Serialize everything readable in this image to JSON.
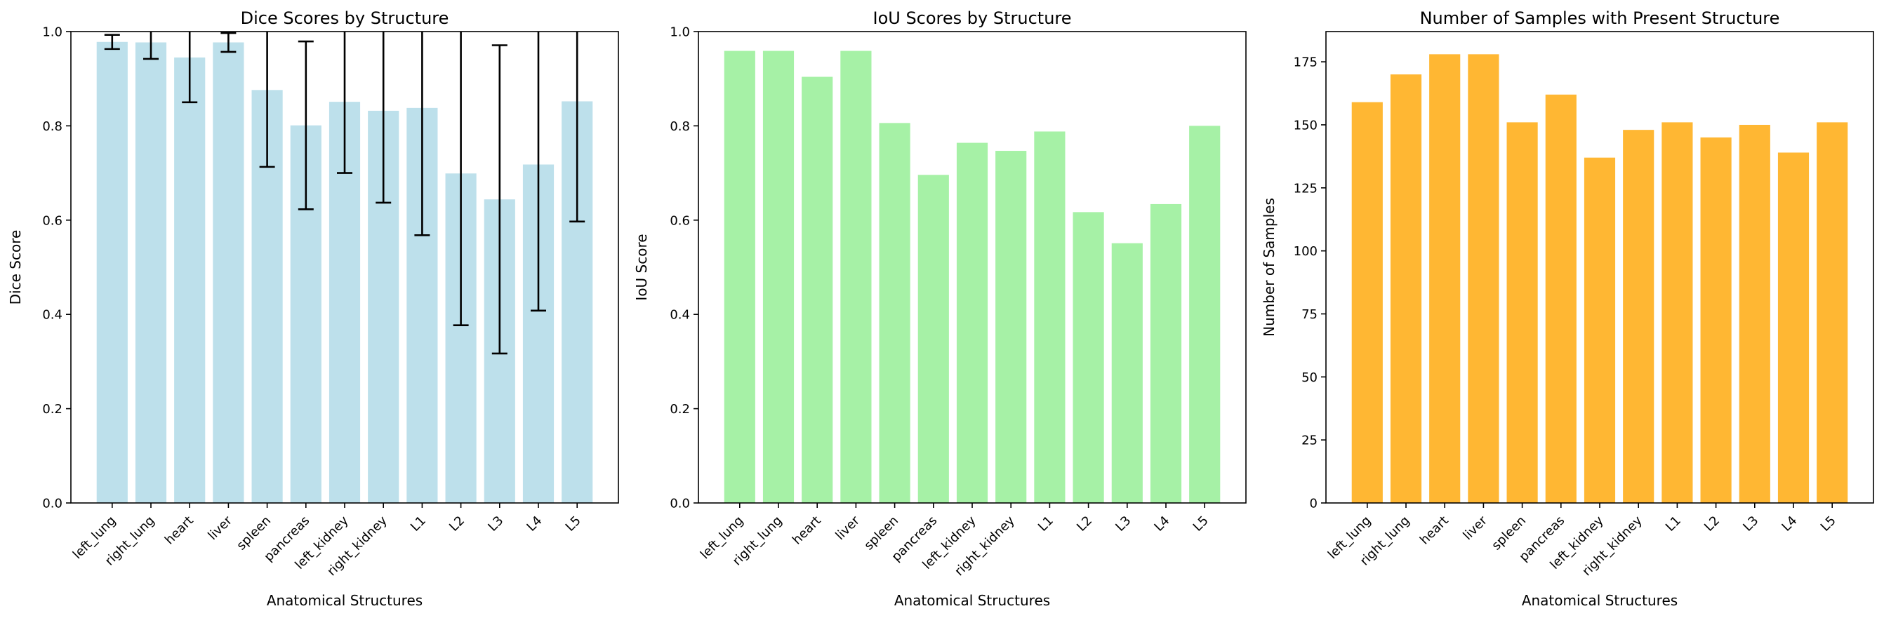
{
  "chart_data": [
    {
      "type": "bar",
      "title": "Dice Scores by Structure",
      "xlabel": "Anatomical Structures",
      "ylabel": "Dice Score",
      "ylim": [
        0,
        1.0
      ],
      "yticks": [
        0.0,
        0.2,
        0.4,
        0.6,
        0.8,
        1.0
      ],
      "ytick_labels": [
        "0.0",
        "0.2",
        "0.4",
        "0.6",
        "0.8",
        "1.0"
      ],
      "color": "#add8e6",
      "categories": [
        "left_lung",
        "right_lung",
        "heart",
        "liver",
        "spleen",
        "pancreas",
        "left_kidney",
        "right_kidney",
        "L1",
        "L2",
        "L3",
        "L4",
        "L5"
      ],
      "values": [
        0.978,
        0.977,
        0.945,
        0.977,
        0.876,
        0.801,
        0.851,
        0.832,
        0.838,
        0.699,
        0.644,
        0.718,
        0.852
      ],
      "error": [
        0.015,
        0.035,
        0.095,
        0.02,
        0.163,
        0.178,
        0.151,
        0.195,
        0.27,
        0.322,
        0.327,
        0.31,
        0.255
      ],
      "grid": false,
      "legend": "none"
    },
    {
      "type": "bar",
      "title": "IoU Scores by Structure",
      "xlabel": "Anatomical Structures",
      "ylabel": "IoU Score",
      "ylim": [
        0,
        1.0
      ],
      "yticks": [
        0.0,
        0.2,
        0.4,
        0.6,
        0.8,
        1.0
      ],
      "ytick_labels": [
        "0.0",
        "0.2",
        "0.4",
        "0.6",
        "0.8",
        "1.0"
      ],
      "color": "#90ee90",
      "categories": [
        "left_lung",
        "right_lung",
        "heart",
        "liver",
        "spleen",
        "pancreas",
        "left_kidney",
        "right_kidney",
        "L1",
        "L2",
        "L3",
        "L4",
        "L5"
      ],
      "values": [
        0.959,
        0.959,
        0.904,
        0.959,
        0.806,
        0.696,
        0.764,
        0.747,
        0.788,
        0.617,
        0.551,
        0.634,
        0.8
      ],
      "grid": false,
      "legend": "none"
    },
    {
      "type": "bar",
      "title": "Number of Samples with Present Structure",
      "xlabel": "Anatomical Structures",
      "ylabel": "Number of Samples",
      "ylim": [
        0,
        187
      ],
      "yticks": [
        0,
        25,
        50,
        75,
        100,
        125,
        150,
        175
      ],
      "ytick_labels": [
        "0",
        "25",
        "50",
        "75",
        "100",
        "125",
        "150",
        "175"
      ],
      "color": "#ffa500",
      "categories": [
        "left_lung",
        "right_lung",
        "heart",
        "liver",
        "spleen",
        "pancreas",
        "left_kidney",
        "right_kidney",
        "L1",
        "L2",
        "L3",
        "L4",
        "L5"
      ],
      "values": [
        159,
        170,
        178,
        178,
        151,
        162,
        137,
        148,
        151,
        145,
        150,
        139,
        151
      ],
      "grid": false,
      "legend": "none"
    }
  ]
}
